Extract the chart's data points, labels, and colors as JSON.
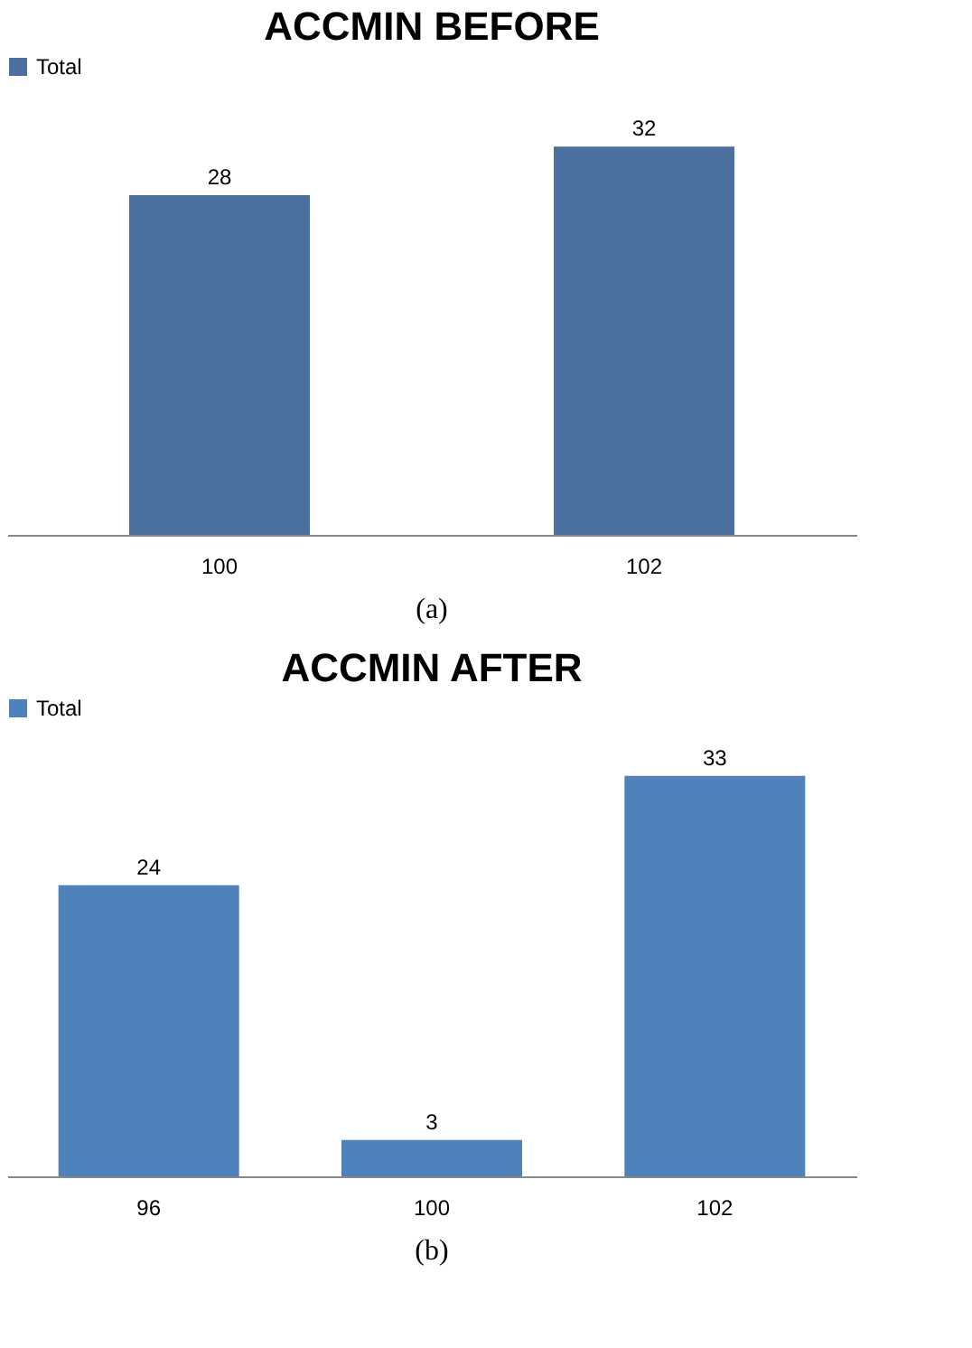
{
  "chart_data": [
    {
      "type": "bar",
      "title": "ACCMIN BEFORE",
      "categories": [
        "100",
        "102"
      ],
      "series": [
        {
          "name": "Total",
          "color": "#4a70a0",
          "values": [
            28,
            32
          ]
        }
      ],
      "data_labels": true,
      "legend": "top",
      "grid": false,
      "tick_labels": "x",
      "annotations": [
        "(a)"
      ]
    },
    {
      "type": "bar",
      "title": "ACCMIN AFTER",
      "categories": [
        "96",
        "100",
        "102"
      ],
      "series": [
        {
          "name": "Total",
          "color": "#4f81bd",
          "values": [
            24,
            3,
            33
          ]
        }
      ],
      "data_labels": true,
      "legend": "top",
      "grid": false,
      "tick_labels": "x",
      "annotations": [
        "(b)"
      ]
    }
  ]
}
